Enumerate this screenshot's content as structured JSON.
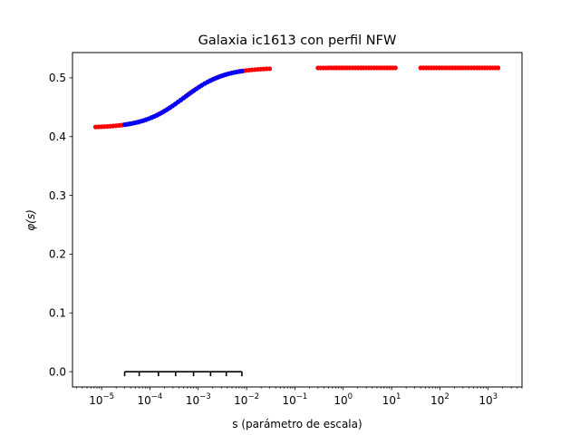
{
  "chart_data": {
    "type": "scatter",
    "title": "Galaxia ic1613 con perfil NFW",
    "xlabel": "s (parámetro de escala)",
    "ylabel": "φ(s)",
    "x_scale": "log",
    "xlim": [
      2.5e-06,
      5000
    ],
    "ylim": [
      -0.026,
      0.543
    ],
    "x_ticks": [
      {
        "value": 1e-05,
        "base": "10",
        "exp": "−5"
      },
      {
        "value": 0.0001,
        "base": "10",
        "exp": "−4"
      },
      {
        "value": 0.001,
        "base": "10",
        "exp": "−3"
      },
      {
        "value": 0.01,
        "base": "10",
        "exp": "−2"
      },
      {
        "value": 0.1,
        "base": "10",
        "exp": "−1"
      },
      {
        "value": 1,
        "base": "10",
        "exp": "0"
      },
      {
        "value": 10,
        "base": "10",
        "exp": "1"
      },
      {
        "value": 100,
        "base": "10",
        "exp": "2"
      },
      {
        "value": 1000,
        "base": "10",
        "exp": "3"
      }
    ],
    "y_ticks": [
      {
        "value": 0.0,
        "label": "0.0"
      },
      {
        "value": 0.1,
        "label": "0.1"
      },
      {
        "value": 0.2,
        "label": "0.2"
      },
      {
        "value": 0.3,
        "label": "0.3"
      },
      {
        "value": 0.4,
        "label": "0.4"
      },
      {
        "value": 0.5,
        "label": "0.5"
      }
    ],
    "grid": false,
    "series": [
      {
        "color": "#ff0000",
        "segments": [
          {
            "x_range": [
              7.5e-06,
              0.03
            ],
            "count": 60
          },
          {
            "x_range": [
              0.3,
              12
            ],
            "count": 30
          },
          {
            "x_range": [
              40,
              1600
            ],
            "count": 30
          }
        ]
      },
      {
        "color": "#0000ff",
        "segments": [
          {
            "x_range": [
              3e-05,
              0.008
            ],
            "count": 45
          }
        ]
      }
    ],
    "curve": {
      "description": "sigmoid in log10(s)",
      "low": 0.415,
      "high": 0.517,
      "center_log10": -3.3,
      "width": 0.42
    },
    "annotation_bracket": {
      "y": 0.0,
      "x_positions": [
        3e-05,
        6e-05,
        0.00015,
        0.00034,
        0.0008,
        0.0018,
        0.0038,
        0.008
      ]
    }
  }
}
